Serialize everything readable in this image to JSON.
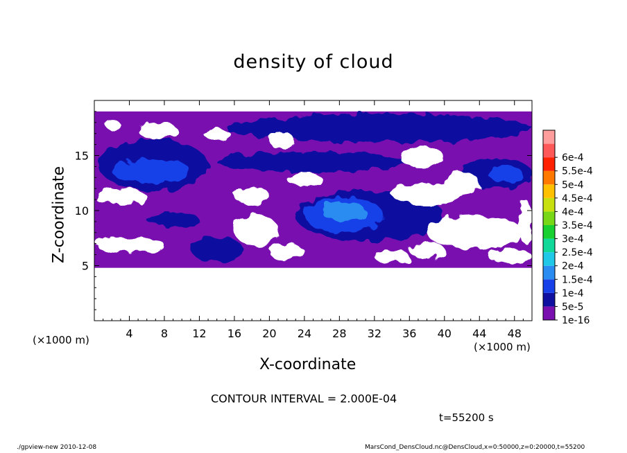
{
  "title": "density of cloud",
  "xlabel": "X-coordinate",
  "ylabel": "Z-coordinate",
  "x_unit": "(×1000 m)",
  "y_unit": "(×1000 m)",
  "contour_interval": "CONTOUR INTERVAL = 2.000E-04",
  "time_label": "t=55200 s",
  "footer_left": "./gpview-new   2010-12-08",
  "footer_right": "MarsCond_DensCloud.nc@DensCloud,x=0:50000,z=0:20000,t=55200",
  "chart_data": {
    "type": "heatmap",
    "title": "density of cloud",
    "xlabel": "X-coordinate",
    "ylabel": "Z-coordinate",
    "xlim": [
      0,
      50
    ],
    "ylim": [
      0,
      20
    ],
    "x_ticks": [
      4,
      8,
      12,
      16,
      20,
      24,
      28,
      32,
      36,
      40,
      44,
      48
    ],
    "y_ticks": [
      5,
      10,
      15
    ],
    "cloud_layer_z": [
      4.8,
      19
    ],
    "colorbar": {
      "labels": [
        "1e-16",
        "5e-5",
        "1e-4",
        "1.5e-4",
        "2e-4",
        "2.5e-4",
        "3e-4",
        "3.5e-4",
        "4e-4",
        "4.5e-4",
        "5e-4",
        "5.5e-4",
        "6e-4"
      ],
      "colors": [
        "#7a0fb0",
        "#1010a0",
        "#1840e8",
        "#2a8cf0",
        "#20c8e8",
        "#10d898",
        "#18d030",
        "#78d818",
        "#c8e010",
        "#ffc000",
        "#ff7800",
        "#ff2000",
        "#ff5858",
        "#ff9c9c"
      ]
    },
    "regions": [
      {
        "level": "1e-16",
        "x": [
          0,
          50
        ],
        "z": [
          4.8,
          19
        ]
      },
      {
        "level": "5e-5",
        "x": [
          15,
          50
        ],
        "z": [
          16.2,
          18.8
        ]
      },
      {
        "level": "5e-5",
        "x": [
          14,
          36
        ],
        "z": [
          13.5,
          15.3
        ]
      },
      {
        "level": "5e-5",
        "x": [
          0.5,
          13
        ],
        "z": [
          11.8,
          16.5
        ]
      },
      {
        "level": "1e-4",
        "x": [
          2,
          11
        ],
        "z": [
          12.5,
          14.7
        ]
      },
      {
        "level": "5e-5",
        "x": [
          23,
          40
        ],
        "z": [
          7.2,
          11.8
        ]
      },
      {
        "level": "1e-4",
        "x": [
          24,
          33
        ],
        "z": [
          8,
          11.2
        ]
      },
      {
        "level": "1.5e-4",
        "x": [
          26,
          31
        ],
        "z": [
          9,
          10.8
        ]
      },
      {
        "level": "5e-5",
        "x": [
          42,
          50
        ],
        "z": [
          12,
          14.8
        ]
      },
      {
        "level": "1e-4",
        "x": [
          45,
          49
        ],
        "z": [
          12.6,
          14
        ]
      },
      {
        "level": "5e-5",
        "x": [
          11,
          17
        ],
        "z": [
          5.4,
          7.6
        ]
      },
      {
        "level": "5e-5",
        "x": [
          6,
          12
        ],
        "z": [
          8.5,
          9.8
        ]
      }
    ],
    "clear_regions": [
      {
        "x": [
          5,
          9.5
        ],
        "z": [
          16.5,
          18
        ]
      },
      {
        "x": [
          1.3,
          3
        ],
        "z": [
          17.3,
          18.2
        ]
      },
      {
        "x": [
          12.5,
          15.5
        ],
        "z": [
          16.4,
          17.5
        ]
      },
      {
        "x": [
          20,
          23
        ],
        "z": [
          15.6,
          17
        ]
      },
      {
        "x": [
          35,
          40
        ],
        "z": [
          13.8,
          15.8
        ]
      },
      {
        "x": [
          22,
          26
        ],
        "z": [
          12.2,
          13.5
        ]
      },
      {
        "x": [
          16,
          20
        ],
        "z": [
          10.5,
          12.2
        ]
      },
      {
        "x": [
          0,
          6
        ],
        "z": [
          10.5,
          12
        ]
      },
      {
        "x": [
          34,
          42
        ],
        "z": [
          10.5,
          12.5
        ]
      },
      {
        "x": [
          40,
          44
        ],
        "z": [
          11.5,
          13.5
        ]
      },
      {
        "x": [
          38,
          49
        ],
        "z": [
          6.5,
          9.5
        ]
      },
      {
        "x": [
          36,
          40
        ],
        "z": [
          5.6,
          7.2
        ]
      },
      {
        "x": [
          0.3,
          6
        ],
        "z": [
          6.2,
          7.5
        ]
      },
      {
        "x": [
          4,
          8
        ],
        "z": [
          6.2,
          7.5
        ]
      },
      {
        "x": [
          16,
          21
        ],
        "z": [
          6.8,
          9.6
        ]
      },
      {
        "x": [
          20,
          24
        ],
        "z": [
          5.5,
          7
        ]
      },
      {
        "x": [
          32,
          36
        ],
        "z": [
          5.2,
          6.4
        ]
      },
      {
        "x": [
          45,
          50
        ],
        "z": [
          5.2,
          6.5
        ]
      },
      {
        "x": [
          48.5,
          50
        ],
        "z": [
          7,
          11
        ]
      }
    ]
  }
}
